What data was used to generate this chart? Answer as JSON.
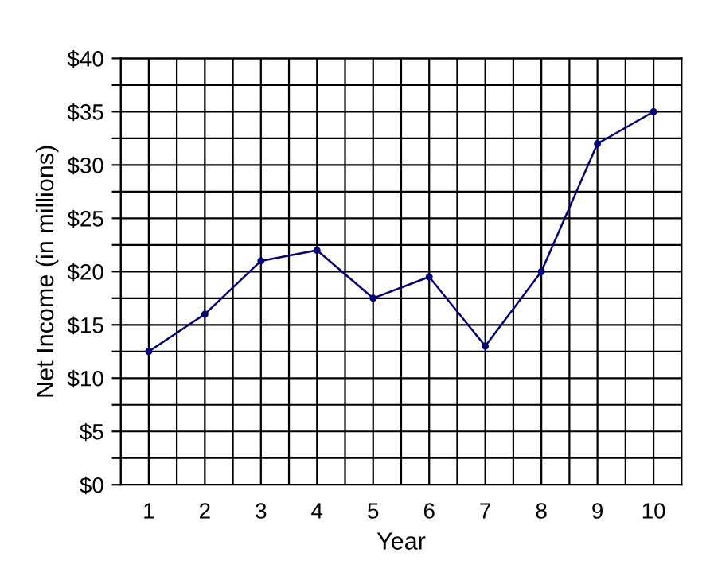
{
  "chart_data": {
    "type": "line",
    "xlabel": "Year",
    "ylabel": "Net Income (in millions)",
    "categories": [
      "1",
      "2",
      "3",
      "4",
      "5",
      "6",
      "7",
      "8",
      "9",
      "10"
    ],
    "series": [
      {
        "color": "#000080",
        "values": [
          12.5,
          16,
          21,
          22,
          17.5,
          19.5,
          13,
          20,
          32,
          35
        ]
      }
    ],
    "ylim": [
      0,
      40
    ],
    "yticks": [
      {
        "value": 0,
        "label": "$0"
      },
      {
        "value": 2.5,
        "label": null
      },
      {
        "value": 5,
        "label": "$5"
      },
      {
        "value": 7.5,
        "label": null
      },
      {
        "value": 10,
        "label": "$10"
      },
      {
        "value": 12.5,
        "label": null
      },
      {
        "value": 15,
        "label": "$15"
      },
      {
        "value": 17.5,
        "label": null
      },
      {
        "value": 20,
        "label": "$20"
      },
      {
        "value": 22.5,
        "label": null
      },
      {
        "value": 25,
        "label": "$25"
      },
      {
        "value": 27.5,
        "label": null
      },
      {
        "value": 30,
        "label": "$30"
      },
      {
        "value": 32.5,
        "label": null
      },
      {
        "value": 35,
        "label": "$35"
      },
      {
        "value": 37.5,
        "label": null
      },
      {
        "value": 40,
        "label": "$40"
      }
    ],
    "grid": true,
    "marker": "circle",
    "line_style": "solid"
  }
}
